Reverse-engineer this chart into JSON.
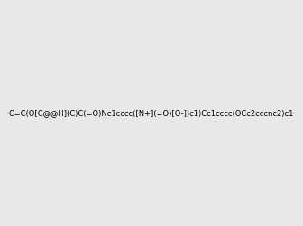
{
  "smiles": "O=C(O[C@@H](C)C(=O)Nc1cccc([N+](=O)[O-])c1)Cc1cccc(OCc2cccnc2)c1",
  "image_size": 300,
  "background_color": "#e8e8e8",
  "atom_color_scheme": "default"
}
